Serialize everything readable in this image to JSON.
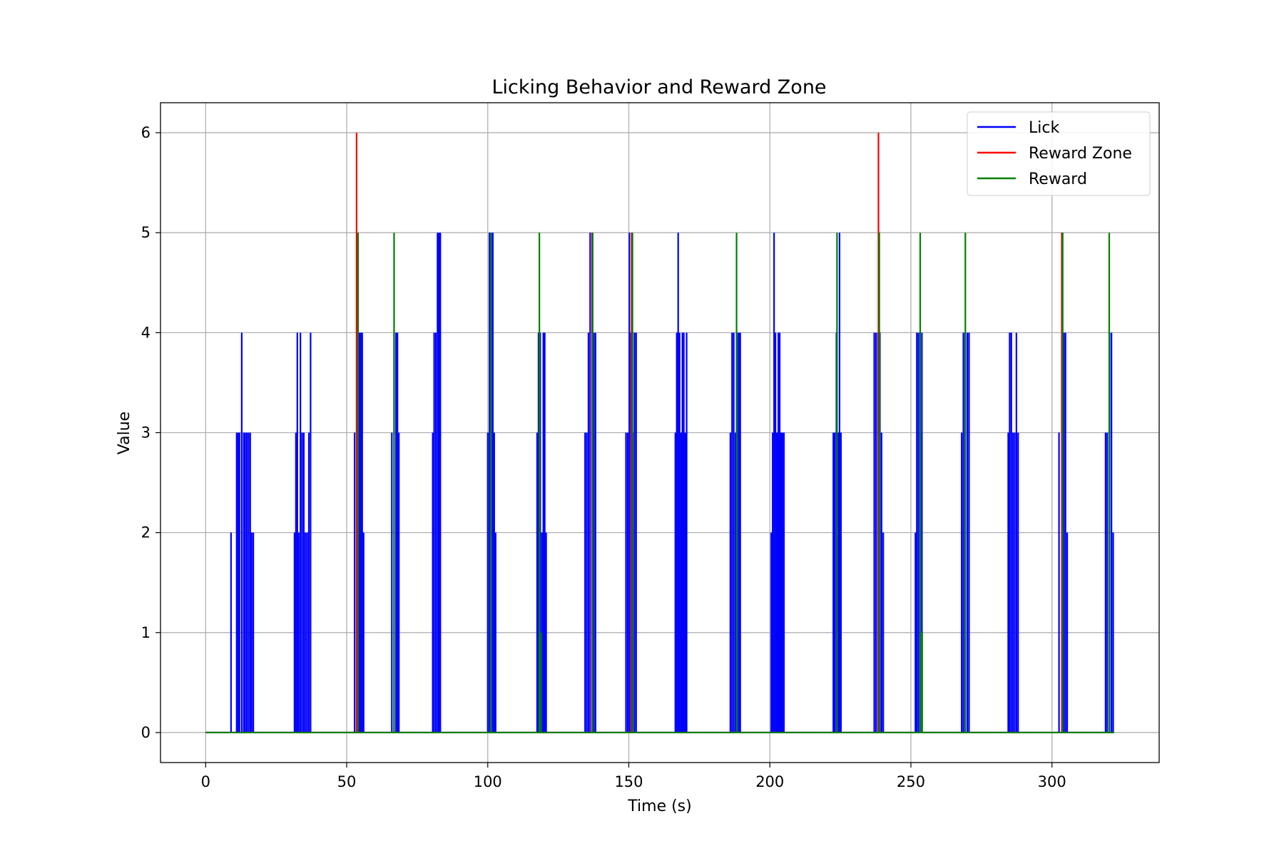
{
  "chart_data": {
    "type": "line",
    "title": "Licking Behavior and Reward Zone",
    "xlabel": "Time (s)",
    "ylabel": "Value",
    "xlim": [
      -16,
      338
    ],
    "ylim": [
      -0.3,
      6.3
    ],
    "xticks": [
      0,
      50,
      100,
      150,
      200,
      250,
      300
    ],
    "yticks": [
      0,
      1,
      2,
      3,
      4,
      5,
      6
    ],
    "grid": true,
    "legend_position": "top-right",
    "series": [
      {
        "name": "Lick",
        "color": "#0000ff",
        "baseline_range": [
          0,
          322
        ],
        "events": [
          [
            9,
            2
          ],
          [
            11,
            3
          ],
          [
            11.5,
            3
          ],
          [
            12,
            3
          ],
          [
            12.8,
            4
          ],
          [
            13.5,
            3
          ],
          [
            14,
            3
          ],
          [
            14.6,
            3
          ],
          [
            15.2,
            3
          ],
          [
            15.8,
            3
          ],
          [
            16.3,
            2
          ],
          [
            16.9,
            2
          ],
          [
            31.5,
            2
          ],
          [
            32,
            3
          ],
          [
            32.5,
            4
          ],
          [
            33,
            2
          ],
          [
            33.6,
            4
          ],
          [
            34.2,
            3
          ],
          [
            34.8,
            3
          ],
          [
            35.4,
            2
          ],
          [
            36,
            2
          ],
          [
            36.6,
            3
          ],
          [
            37.2,
            4
          ],
          [
            52.8,
            3
          ],
          [
            54,
            5
          ],
          [
            54.5,
            4
          ],
          [
            55,
            4
          ],
          [
            55.5,
            4
          ],
          [
            56,
            2
          ],
          [
            66,
            3
          ],
          [
            66.8,
            4
          ],
          [
            67.5,
            4
          ],
          [
            68,
            4
          ],
          [
            68.5,
            3
          ],
          [
            80.5,
            3
          ],
          [
            81,
            4
          ],
          [
            81.6,
            4
          ],
          [
            82.2,
            5
          ],
          [
            82.7,
            5
          ],
          [
            83.2,
            5
          ],
          [
            100,
            3
          ],
          [
            100.6,
            5
          ],
          [
            101.2,
            5
          ],
          [
            101.8,
            5
          ],
          [
            102.3,
            3
          ],
          [
            102.8,
            2
          ],
          [
            117.5,
            3
          ],
          [
            118,
            4
          ],
          [
            118.6,
            4
          ],
          [
            119.2,
            2
          ],
          [
            119.7,
            4
          ],
          [
            120.2,
            4
          ],
          [
            120.7,
            2
          ],
          [
            134.5,
            3
          ],
          [
            135.1,
            3
          ],
          [
            135.7,
            4
          ],
          [
            136.3,
            5
          ],
          [
            137,
            3
          ],
          [
            137.6,
            4
          ],
          [
            138.2,
            4
          ],
          [
            149,
            3
          ],
          [
            149.6,
            3
          ],
          [
            150.2,
            5
          ],
          [
            150.8,
            4
          ],
          [
            151.4,
            3
          ],
          [
            152,
            4
          ],
          [
            152.6,
            4
          ],
          [
            166.5,
            3
          ],
          [
            167,
            4
          ],
          [
            167.5,
            5
          ],
          [
            168,
            4
          ],
          [
            168.5,
            3
          ],
          [
            169,
            4
          ],
          [
            169.5,
            4
          ],
          [
            170,
            3
          ],
          [
            170.5,
            4
          ],
          [
            186,
            3
          ],
          [
            186.6,
            4
          ],
          [
            187.2,
            4
          ],
          [
            187.8,
            3
          ],
          [
            188.4,
            4
          ],
          [
            189,
            4
          ],
          [
            189.5,
            4
          ],
          [
            200.5,
            2
          ],
          [
            201,
            3
          ],
          [
            201.5,
            5
          ],
          [
            202,
            4
          ],
          [
            202.5,
            3
          ],
          [
            203,
            4
          ],
          [
            203.5,
            4
          ],
          [
            204,
            3
          ],
          [
            204.5,
            3
          ],
          [
            205,
            3
          ],
          [
            222.5,
            3
          ],
          [
            223,
            3
          ],
          [
            223.6,
            4
          ],
          [
            224.2,
            3
          ],
          [
            224.7,
            5
          ],
          [
            225.2,
            3
          ],
          [
            237,
            4
          ],
          [
            237.6,
            4
          ],
          [
            238.3,
            4
          ],
          [
            239,
            4
          ],
          [
            239.6,
            3
          ],
          [
            240.2,
            2
          ],
          [
            251.6,
            2
          ],
          [
            252.1,
            4
          ],
          [
            252.7,
            4
          ],
          [
            253.3,
            3
          ],
          [
            253.9,
            4
          ],
          [
            268,
            3
          ],
          [
            268.6,
            4
          ],
          [
            269.2,
            4
          ],
          [
            270,
            4
          ],
          [
            270.6,
            4
          ],
          [
            284.5,
            3
          ],
          [
            285,
            4
          ],
          [
            285.6,
            4
          ],
          [
            286.2,
            3
          ],
          [
            286.8,
            3
          ],
          [
            287.4,
            4
          ],
          [
            288,
            3
          ],
          [
            302.5,
            3
          ],
          [
            303.5,
            5
          ],
          [
            304.2,
            4
          ],
          [
            304.8,
            4
          ],
          [
            305.4,
            2
          ],
          [
            319,
            3
          ],
          [
            319.6,
            3
          ],
          [
            320.4,
            4
          ],
          [
            321.1,
            4
          ],
          [
            321.7,
            2
          ]
        ]
      },
      {
        "name": "Reward Zone",
        "color": "#ff0000",
        "baseline_range": [
          0,
          322
        ],
        "events": [
          [
            53.5,
            6
          ],
          [
            137,
            5
          ],
          [
            151,
            5
          ],
          [
            238.5,
            6
          ],
          [
            303.5,
            5
          ]
        ]
      },
      {
        "name": "Reward",
        "color": "#008000",
        "baseline_range": [
          0,
          322
        ],
        "events": [
          [
            54,
            5
          ],
          [
            66.8,
            5
          ],
          [
            101,
            5
          ],
          [
            118.3,
            5
          ],
          [
            118.9,
            1
          ],
          [
            137.2,
            5
          ],
          [
            151.3,
            5
          ],
          [
            188.2,
            5
          ],
          [
            223.8,
            5
          ],
          [
            238.8,
            5
          ],
          [
            253.3,
            5
          ],
          [
            254,
            1
          ],
          [
            269.3,
            5
          ],
          [
            303.8,
            5
          ],
          [
            320.3,
            5
          ]
        ]
      }
    ]
  }
}
